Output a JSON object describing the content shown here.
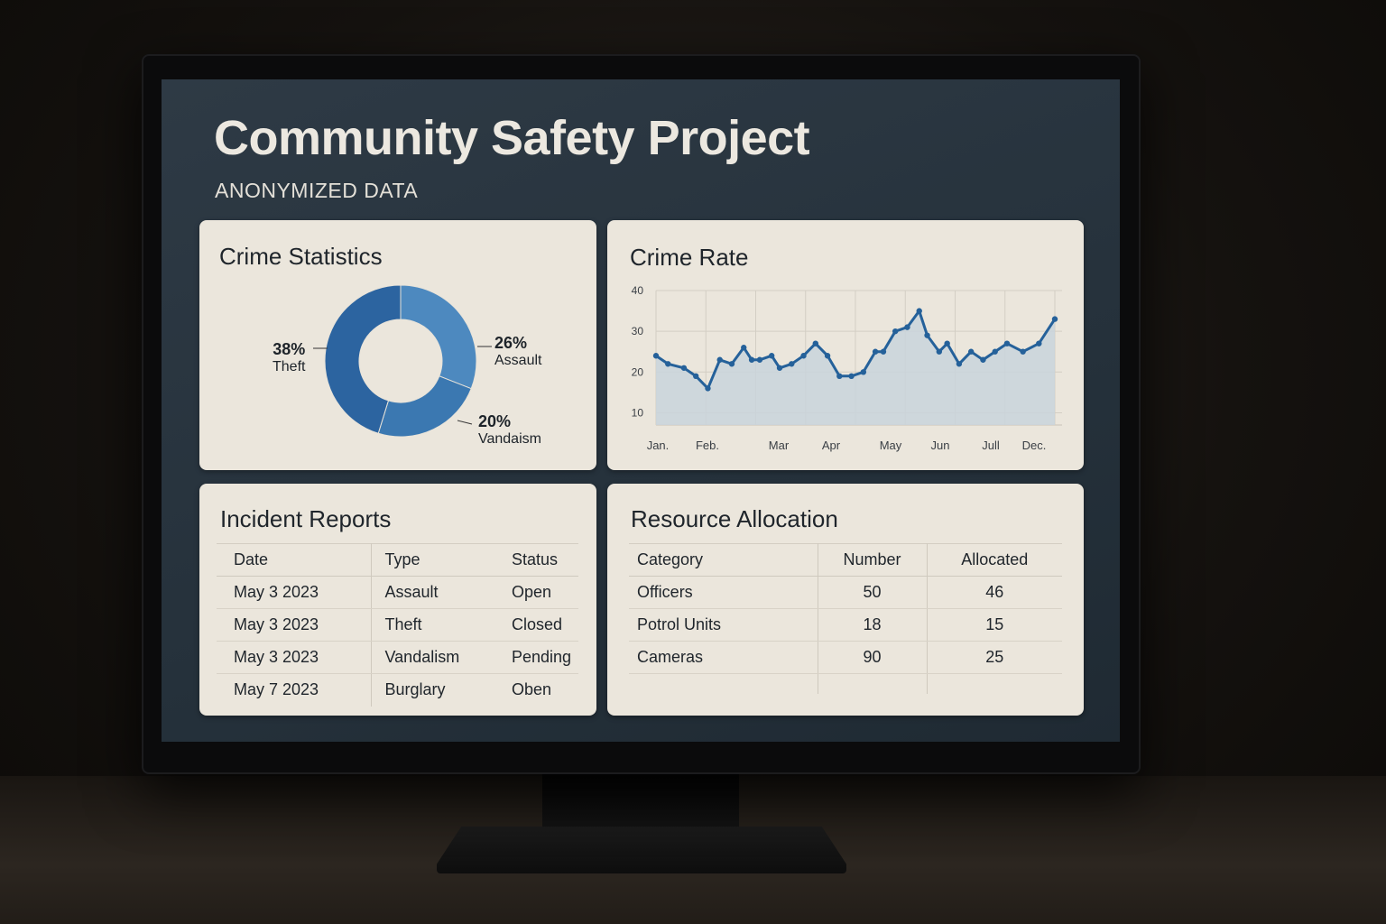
{
  "header": {
    "title": "Community Safety Project",
    "subtitle": "ANONYMIZED DATA"
  },
  "crime_statistics": {
    "title": "Crime Statistics",
    "slices": [
      {
        "pct": "38%",
        "name": "Theft"
      },
      {
        "pct": "26%",
        "name": "Assault"
      },
      {
        "pct": "20%",
        "name": "Vandaism"
      }
    ]
  },
  "crime_rate": {
    "title": "Crime Rate"
  },
  "incident_reports": {
    "title": "Incident Reports",
    "columns": [
      "Date",
      "Type",
      "Status"
    ],
    "rows": [
      [
        "May 3 2023",
        "Assault",
        "Open"
      ],
      [
        "May 3 2023",
        "Theft",
        "Closed"
      ],
      [
        "May 3 2023",
        "Vandalism",
        "Pending"
      ],
      [
        "May 7 2023",
        "Burglary",
        "Oben"
      ]
    ]
  },
  "resource_allocation": {
    "title": "Resource Allocation",
    "columns": [
      "Category",
      "Number",
      "Allocated"
    ],
    "rows": [
      [
        "Officers",
        "50",
        "46"
      ],
      [
        "Potrol Units",
        "18",
        "15"
      ],
      [
        "Cameras",
        "90",
        "25"
      ]
    ]
  },
  "colors": {
    "accent": "#2a6aa3",
    "donut_dark": "#2c64a0",
    "donut_mid": "#3b78b1",
    "donut_light": "#4d89bf",
    "panel_bg": "#ebe6dc",
    "screen_bg": "#2a3540"
  },
  "chart_data": [
    {
      "type": "pie",
      "title": "Crime Statistics",
      "categories": [
        "Theft",
        "Assault",
        "Vandaism"
      ],
      "values": [
        38,
        26,
        20
      ],
      "value_labels": [
        "38%",
        "26%",
        "20%"
      ],
      "style": "donut"
    },
    {
      "type": "area",
      "title": "Crime Rate",
      "xlabel": "",
      "ylabel": "",
      "ylim": [
        7,
        40
      ],
      "yticks": [
        10,
        20,
        30,
        40
      ],
      "xticks": [
        "Jan.",
        "Feb.",
        "Mar",
        "Apr",
        "May",
        "Jun",
        "Jull",
        "Dec."
      ],
      "grid": true,
      "series": [
        {
          "x": [
            0,
            0.3,
            0.7,
            1.0,
            1.3,
            1.6,
            1.9,
            2.2,
            2.4,
            2.6,
            2.9,
            3.1,
            3.4,
            3.7,
            4.0,
            4.3,
            4.6,
            4.9,
            5.2,
            5.5,
            5.7,
            6.0,
            6.3,
            6.6,
            6.8,
            7.1,
            7.3,
            7.6,
            7.9,
            8.2,
            8.5,
            8.8,
            9.2,
            9.6,
            10.0
          ],
          "y": [
            24,
            22,
            21,
            19,
            16,
            23,
            22,
            26,
            23,
            23,
            24,
            21,
            22,
            24,
            27,
            24,
            19,
            19,
            20,
            25,
            25,
            30,
            31,
            35,
            29,
            25,
            27,
            22,
            25,
            23,
            25,
            27,
            25,
            27,
            33
          ]
        }
      ]
    }
  ]
}
